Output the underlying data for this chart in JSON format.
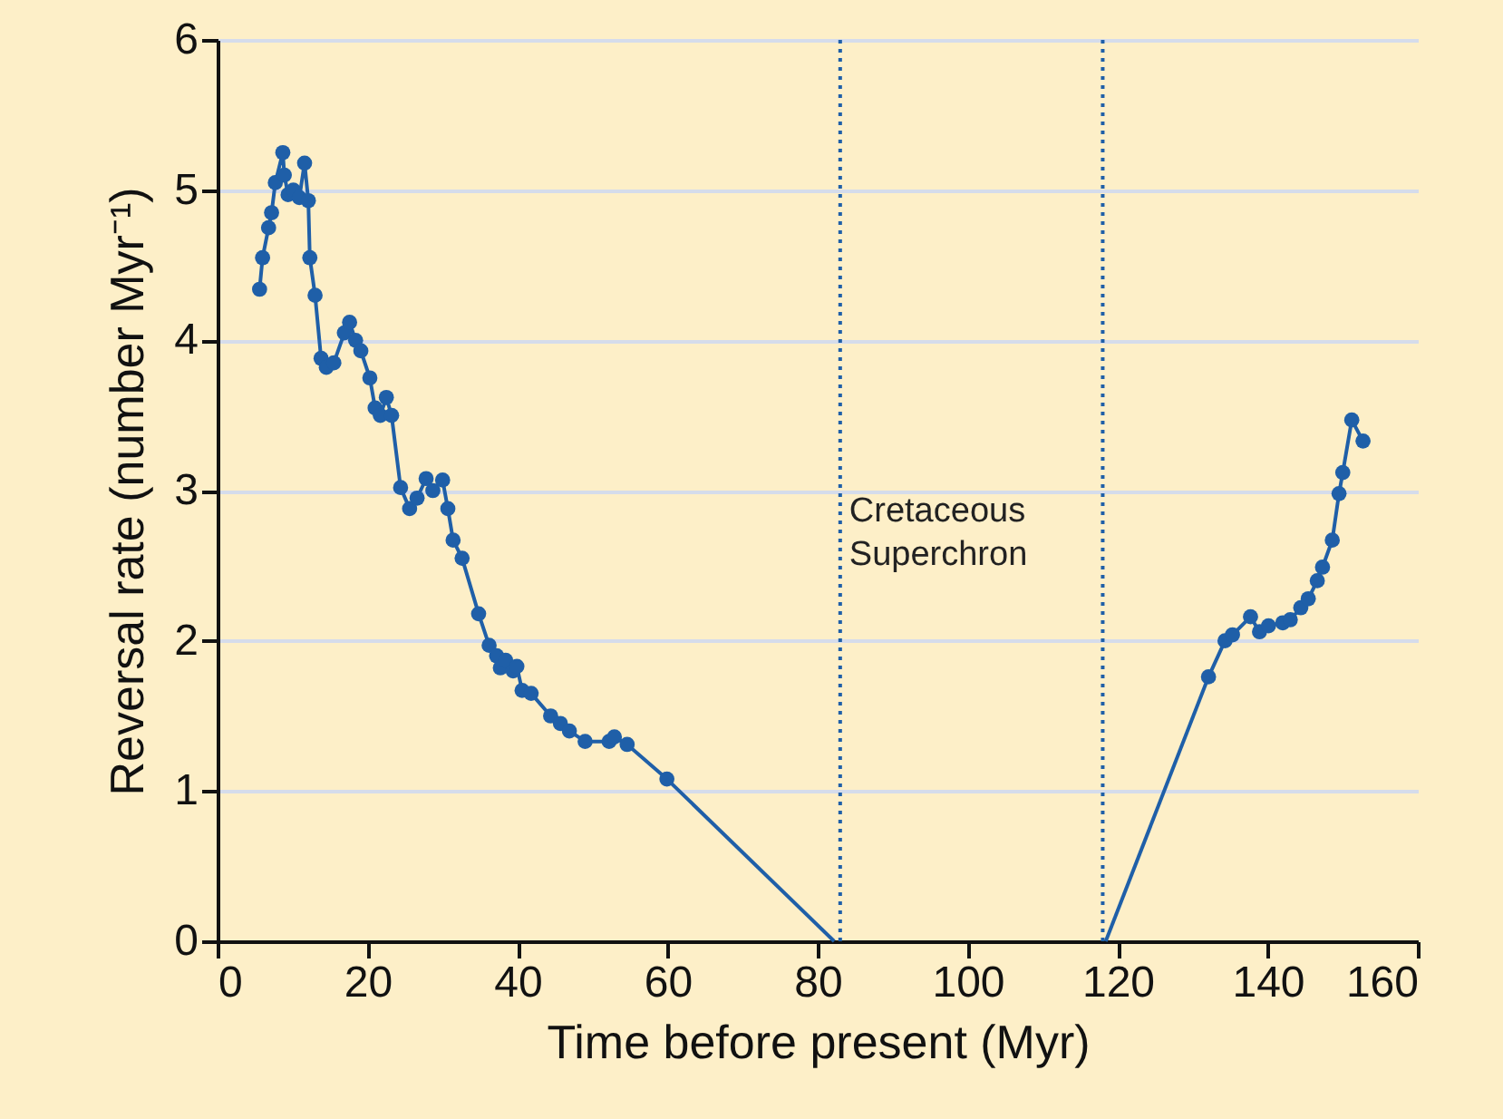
{
  "chart_data": {
    "type": "line",
    "xlabel": "Time before present (Myr)",
    "ylabel": "Reversal rate (number Myr⁻¹)",
    "xlim": [
      0,
      160
    ],
    "xticks": [
      0,
      20,
      40,
      60,
      80,
      100,
      120,
      140,
      160
    ],
    "ylim": [
      0,
      6
    ],
    "yticks": [
      0,
      1,
      2,
      3,
      4,
      5,
      6
    ],
    "grid": "y",
    "series": [
      {
        "color": "#1f5fa8",
        "marker": "circle",
        "line_style": "solid",
        "x": [
          5.6,
          6.0,
          6.8,
          7.2,
          7.7,
          8.7,
          8.9,
          9.4,
          10.1,
          10.9,
          11.6,
          12.1,
          12.3,
          13.0,
          13.8,
          14.5,
          15.5,
          16.9,
          17.6,
          18.4,
          19.1,
          20.3,
          21.0,
          21.7,
          22.5,
          23.2,
          24.4,
          25.6,
          26.6,
          27.8,
          28.7,
          30.0,
          30.7,
          31.4,
          32.6,
          34.8,
          36.2,
          37.2,
          37.7,
          38.4,
          39.4,
          39.9,
          40.6,
          41.8,
          44.4,
          45.7,
          46.9,
          49.0,
          52.2,
          52.9,
          54.6,
          59.9,
          null,
          132.1,
          134.3,
          135.3,
          137.7,
          138.9,
          140.1,
          142.0,
          143.0,
          144.4,
          145.4,
          146.6,
          147.3,
          148.6,
          149.5,
          150.0,
          151.2,
          152.7
        ],
        "values": [
          4.34,
          4.55,
          4.75,
          4.85,
          5.05,
          5.25,
          5.1,
          4.97,
          5.0,
          4.95,
          5.18,
          4.93,
          4.55,
          4.3,
          3.88,
          3.82,
          3.85,
          4.05,
          4.12,
          4.0,
          3.93,
          3.75,
          3.55,
          3.5,
          3.62,
          3.5,
          3.02,
          2.88,
          2.95,
          3.08,
          3.0,
          3.07,
          2.88,
          2.67,
          2.55,
          2.18,
          1.97,
          1.9,
          1.82,
          1.87,
          1.8,
          1.83,
          1.67,
          1.65,
          1.5,
          1.45,
          1.4,
          1.33,
          1.33,
          1.36,
          1.31,
          1.08,
          null,
          1.76,
          2.0,
          2.04,
          2.16,
          2.06,
          2.1,
          2.12,
          2.14,
          2.22,
          2.28,
          2.4,
          2.49,
          2.67,
          2.98,
          3.12,
          3.47,
          3.33
        ]
      },
      {
        "color": "#1f5fa8",
        "marker": "none",
        "line_style": "solid",
        "x": [
          59.9,
          82.2,
          null,
          118.4,
          132.1
        ],
        "values": [
          1.08,
          0,
          null,
          0,
          1.76
        ]
      }
    ],
    "ref_lines": [
      {
        "axis": "x",
        "value": 83,
        "label": "Cretaceous Superchron",
        "color": "#1f5fa8",
        "line_style": "dotted"
      },
      {
        "axis": "x",
        "value": 118,
        "color": "#1f5fa8",
        "line_style": "dotted"
      }
    ]
  }
}
